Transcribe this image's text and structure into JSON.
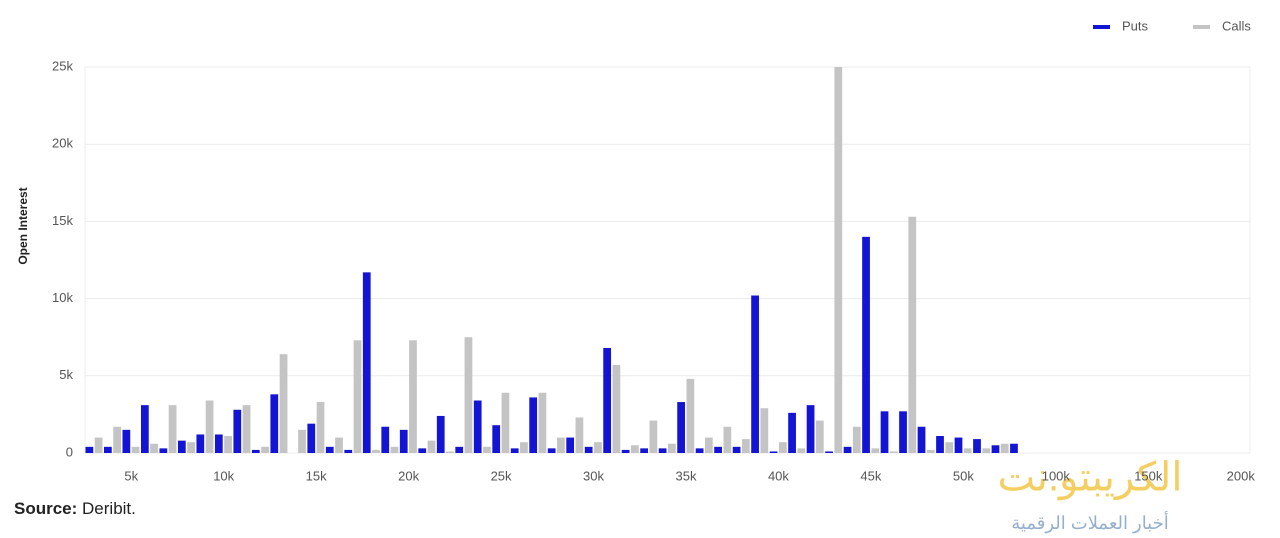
{
  "chart_data": {
    "type": "bar",
    "y_label": "Open Interest",
    "categories": [
      null,
      null,
      "5k",
      null,
      null,
      null,
      null,
      "10k",
      null,
      null,
      null,
      null,
      "15k",
      null,
      null,
      null,
      null,
      "20k",
      null,
      null,
      null,
      null,
      "25k",
      null,
      null,
      null,
      null,
      "30k",
      null,
      null,
      null,
      null,
      "35k",
      null,
      null,
      null,
      null,
      "40k",
      null,
      null,
      null,
      null,
      "45k",
      null,
      null,
      null,
      null,
      "50k",
      null,
      null,
      null,
      null,
      "100k",
      null,
      null,
      null,
      null,
      "150k",
      null,
      null,
      null,
      null,
      "200k"
    ],
    "series": [
      {
        "name": "Puts",
        "color": "#1414d4",
        "values": [
          400,
          400,
          1500,
          3100,
          300,
          800,
          1200,
          1200,
          2800,
          200,
          3800,
          0,
          1900,
          400,
          200,
          11700,
          1700,
          1500,
          300,
          2400,
          400,
          3400,
          1800,
          300,
          3600,
          300,
          1000,
          400,
          6800,
          200,
          300,
          300,
          3300,
          300,
          400,
          400,
          10200,
          100,
          2600,
          3100,
          100,
          400,
          14000,
          2700,
          2700,
          1700,
          1100,
          1000,
          900,
          500,
          600,
          0,
          0,
          0,
          0,
          0,
          0,
          0,
          0,
          0,
          0,
          0,
          0
        ]
      },
      {
        "name": "Calls",
        "color": "#c4c4c4",
        "values": [
          1000,
          1700,
          400,
          600,
          3100,
          700,
          3400,
          1100,
          3100,
          400,
          6400,
          1500,
          3300,
          1000,
          7300,
          200,
          400,
          7300,
          800,
          100,
          7500,
          400,
          3900,
          700,
          3900,
          1000,
          2300,
          700,
          5700,
          500,
          2100,
          600,
          4800,
          1000,
          1700,
          900,
          2900,
          700,
          300,
          2100,
          25000,
          1700,
          300,
          100,
          15300,
          200,
          700,
          300,
          300,
          600,
          0,
          0,
          0,
          0,
          0,
          0,
          0,
          0,
          0,
          0,
          0,
          0,
          0
        ]
      }
    ],
    "ylim": [
      0,
      25000
    ],
    "yticks": [
      0,
      {
        "value": 5000,
        "label": "5k"
      },
      {
        "value": 10000,
        "label": "10k"
      },
      {
        "value": 15000,
        "label": "15k"
      },
      {
        "value": 20000,
        "label": "20k"
      },
      {
        "value": 25000,
        "label": "25k"
      }
    ],
    "grid": true,
    "legend": "top-right"
  },
  "source_label": "Source:",
  "source_value": "Deribit.",
  "watermark": {
    "title": "الكريبتو.نت",
    "subtitle": "أخبار العملات الرقمية"
  }
}
